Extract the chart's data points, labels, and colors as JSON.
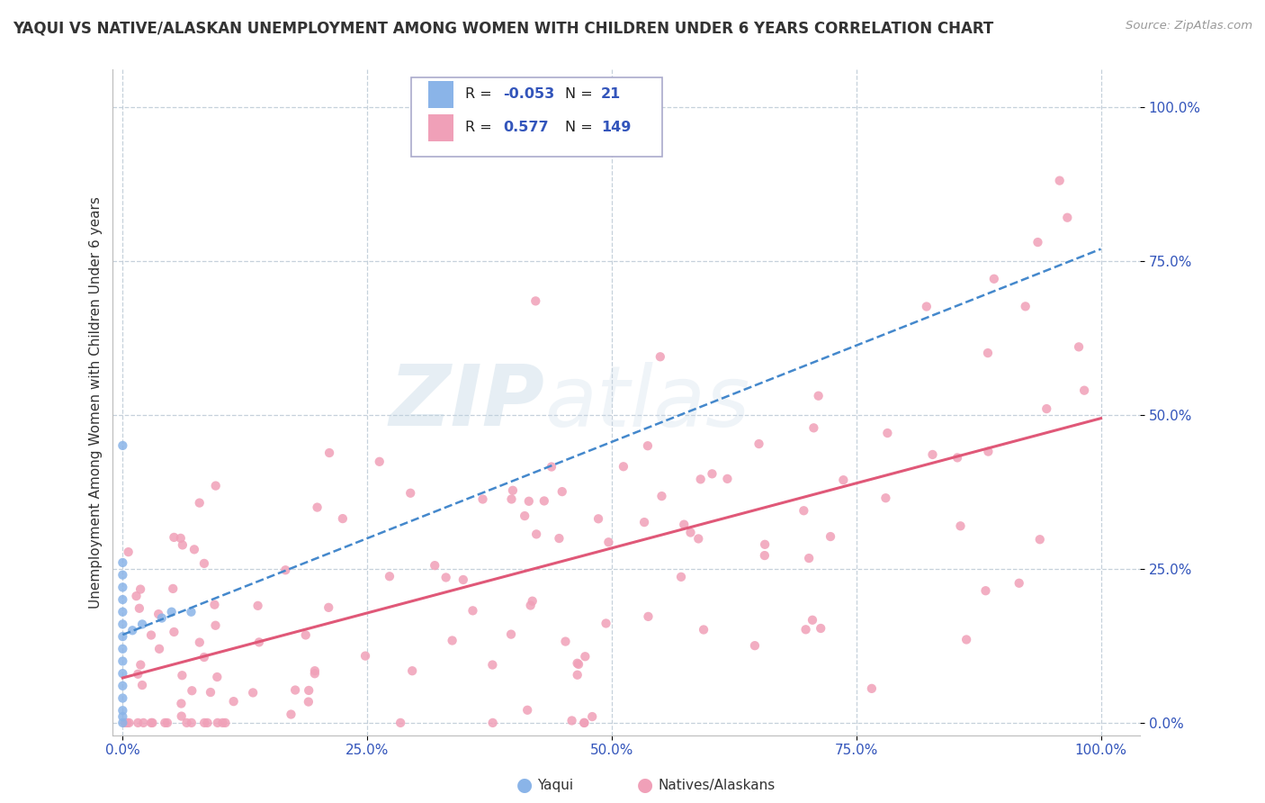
{
  "title": "YAQUI VS NATIVE/ALASKAN UNEMPLOYMENT AMONG WOMEN WITH CHILDREN UNDER 6 YEARS CORRELATION CHART",
  "source": "Source: ZipAtlas.com",
  "ylabel": "Unemployment Among Women with Children Under 6 years",
  "watermark_line1": "ZIP",
  "watermark_line2": "atlas",
  "legend_yaqui_R": "-0.053",
  "legend_yaqui_N": "21",
  "legend_native_R": "0.577",
  "legend_native_N": "149",
  "xticklabels": [
    "0.0%",
    "25.0%",
    "50.0%",
    "75.0%",
    "100.0%"
  ],
  "yticklabels": [
    "0.0%",
    "25.0%",
    "50.0%",
    "75.0%",
    "100.0%"
  ],
  "yaqui_color": "#8ab4e8",
  "native_color": "#f0a0b8",
  "yaqui_line_color": "#4488cc",
  "native_line_color": "#e05878",
  "background_color": "#ffffff",
  "grid_color": "#c0ccd8",
  "bottom_legend_yaqui": "Yaqui",
  "bottom_legend_native": "Natives/Alaskans"
}
